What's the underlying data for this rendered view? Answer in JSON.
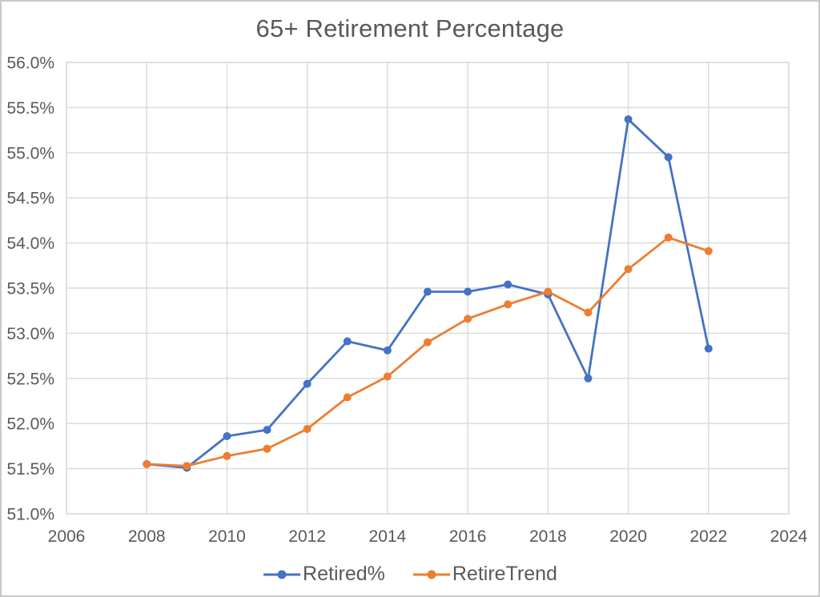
{
  "chart_data": {
    "type": "line",
    "title": "65+ Retirement Percentage",
    "x": [
      2008,
      2009,
      2010,
      2011,
      2012,
      2013,
      2014,
      2015,
      2016,
      2017,
      2018,
      2019,
      2020,
      2021,
      2022
    ],
    "series": [
      {
        "name": "Retired%",
        "color": "#4472C4",
        "values": [
          51.55,
          51.51,
          51.86,
          51.93,
          52.44,
          52.91,
          52.81,
          53.46,
          53.46,
          53.54,
          53.43,
          52.5,
          55.37,
          54.95,
          52.83
        ]
      },
      {
        "name": "RetireTrend",
        "color": "#ED7D31",
        "values": [
          51.55,
          51.53,
          51.64,
          51.72,
          51.94,
          52.29,
          52.52,
          52.9,
          53.16,
          53.32,
          53.46,
          53.23,
          53.71,
          54.06,
          53.91
        ]
      }
    ],
    "xlim": [
      2006,
      2024
    ],
    "ylim": [
      51.0,
      56.0
    ],
    "x_ticks": [
      2006,
      2008,
      2010,
      2012,
      2014,
      2016,
      2018,
      2020,
      2022,
      2024
    ],
    "y_ticks": [
      {
        "value": 51.0,
        "label": "51.0%"
      },
      {
        "value": 51.5,
        "label": "51.5%"
      },
      {
        "value": 52.0,
        "label": "52.0%"
      },
      {
        "value": 52.5,
        "label": "52.5%"
      },
      {
        "value": 53.0,
        "label": "53.0%"
      },
      {
        "value": 53.5,
        "label": "53.5%"
      },
      {
        "value": 54.0,
        "label": "54.0%"
      },
      {
        "value": 54.5,
        "label": "54.5%"
      },
      {
        "value": 55.0,
        "label": "55.0%"
      },
      {
        "value": 55.5,
        "label": "55.5%"
      },
      {
        "value": 56.0,
        "label": "56.0%"
      }
    ],
    "grid": true,
    "legend_position": "bottom",
    "colors": {
      "gridline": "#D9D9D9",
      "plot_border": "#D9D9D9",
      "axis_text": "#595959",
      "title_text": "#595959",
      "frame_border": "#C9C9C9"
    }
  }
}
